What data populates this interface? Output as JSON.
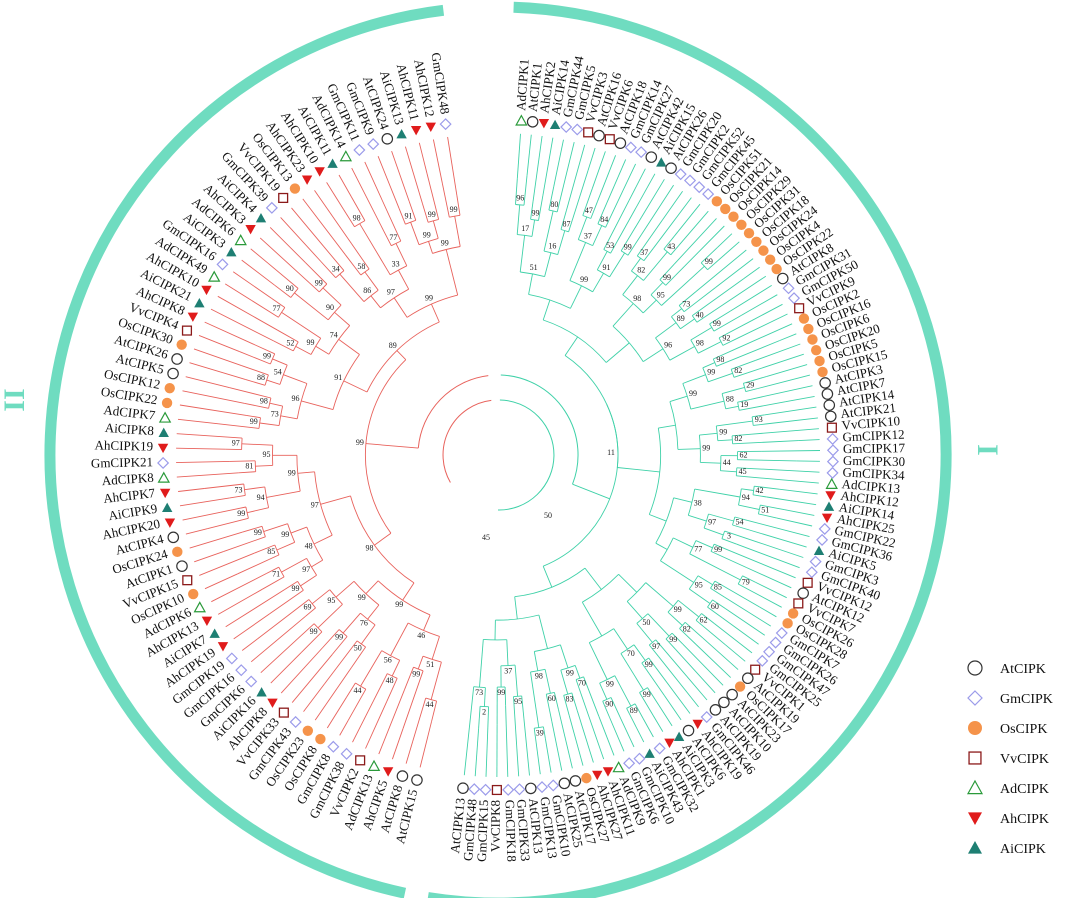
{
  "colors": {
    "ring": "#6fdcc0",
    "clade_I_branch": "#3fd1a8",
    "clade_II_branch": "#e8625c",
    "OsCIPK": "#f5934a",
    "GmCIPK": "#9b9bea",
    "VvCIPK": "#8b1a1a",
    "AdCIPK": "#2a9a3a",
    "AhCIPK": "#e01b1b",
    "AiCIPK": "#1e7f73",
    "AtCIPK": "#333333"
  },
  "clades": [
    {
      "label": "I"
    },
    {
      "label": "II"
    }
  ],
  "legend": [
    {
      "label": "AtCIPK",
      "icon": "open-circle-icon"
    },
    {
      "label": "GmCIPK",
      "icon": "open-diamond-icon"
    },
    {
      "label": "OsCIPK",
      "icon": "filled-circle-icon"
    },
    {
      "label": "VvCIPK",
      "icon": "open-square-icon"
    },
    {
      "label": "AdCIPK",
      "icon": "open-triangle-icon"
    },
    {
      "label": "AhCIPK",
      "icon": "down-triangle-icon"
    },
    {
      "label": "AiCIPK",
      "icon": "up-triangle-icon"
    }
  ],
  "root_bootstrap": [
    "45",
    "50",
    "11"
  ],
  "clade_I_leaves": [
    "AdCIPK1",
    "AtCIPK1",
    "AhCIPK2",
    "AiCIPK14",
    "GmCIPK44",
    "GmCIPK5",
    "VvCIPK3",
    "AtCIPK16",
    "VvCIPK6",
    "AtCIPK18",
    "GmCIPK14",
    "GmCIPK27",
    "AtCIPK42",
    "AiCIPK15",
    "AtCIPK26",
    "GmCIPK20",
    "GmCIPK2",
    "GmCIPK52",
    "GmCIPK45",
    "OsCIPK51",
    "OsCIPK21",
    "OsCIPK14",
    "OsCIPK29",
    "OsCIPK31",
    "OsCIPK18",
    "OsCIPK24",
    "OsCIPK4",
    "OsCIPK22",
    "AtCIPK8",
    "GmCIPK31",
    "GmCIPK50",
    "VvCIPK9",
    "OsCIPK2",
    "OsCIPK16",
    "OsCIPK6",
    "OsCIPK20",
    "OsCIPK5",
    "OsCIPK15",
    "AtCIPK3",
    "AtCIPK7",
    "AtCIPK14",
    "AtCIPK21",
    "VvCIPK10",
    "GmCIPK12",
    "GmCIPK17",
    "GmCIPK30",
    "GmCIPK34",
    "AdCIPK13",
    "AhCIPK12",
    "AiCIPK14",
    "AhCIPK25",
    "GmCIPK22",
    "GmCIPK36",
    "AiCIPK5",
    "GmCIPK3",
    "GmCIPK40",
    "VvCIPK12",
    "AtCIPK12",
    "VvCIPK7",
    "OsCIPK26",
    "OsCIPK28",
    "GmCIPK7",
    "GmCIPK26",
    "GmCIPK47",
    "GmCIPK25",
    "VvCIPK1",
    "AtCIPK19",
    "OsCIPK17",
    "AtCIPK23",
    "AtCIPK10",
    "AtCIPK19",
    "GmCIPK46",
    "AhCIPK19",
    "AtCIPK6",
    "AiCIPK3",
    "AhCIPK1",
    "GmCIPK32",
    "AiCIPK43",
    "GmCIPK10",
    "GmCIPK6",
    "AdCIPK9",
    "AhCIPK11",
    "AhCIPK27",
    "OsCIPK27",
    "AtCIPK17",
    "AtCIPK25",
    "GmCIPK10",
    "GmCIPK13",
    "AtCIPK13",
    "GmCIPK33",
    "GmCIPK18",
    "VvCIPK8",
    "GmCIPK15",
    "GmCIPK48",
    "AtCIPK13"
  ],
  "clade_II_leaves": [
    "AtCIPK15",
    "AtCIPK8",
    "AhCIPK5",
    "AdCIPK13",
    "VvCIPK2",
    "GmCIPK38",
    "GmCIPK8",
    "OsCIPK8",
    "OsCIPK23",
    "GmCIPK43",
    "VvCIPK33",
    "AhCIPK8",
    "AiCIPK16",
    "GmCIPK6",
    "GmCIPK16",
    "GmCIPK19",
    "AhCIPK19",
    "AiCIPK7",
    "AhCIPK13",
    "AdCIPK6",
    "OsCIPK10",
    "VvCIPK15",
    "AtCIPK1",
    "OsCIPK24",
    "AtCIPK4",
    "AhCIPK20",
    "AiCIPK9",
    "AhCIPK7",
    "AdCIPK8",
    "GmCIPK21",
    "AhCIPK19",
    "AiCIPK8",
    "AdCIPK7",
    "OsCIPK22",
    "OsCIPK12",
    "AtCIPK5",
    "AtCIPK26",
    "OsCIPK30",
    "VvCIPK4",
    "AhCIPK8",
    "AiCIPK21",
    "AhCIPK10",
    "AdCIPK49",
    "GmCIPK16",
    "AiCIPK3",
    "AdCIPK6",
    "AhCIPK3",
    "AiCIPK4",
    "GmCIPK39",
    "VvCIPK19",
    "OsCIPK13",
    "AhCIPK23",
    "AhCIPK10",
    "AiCIPK11",
    "AdCIPK14",
    "GmCIPK11",
    "GmCIPK9",
    "AtCIPK24",
    "AiCIPK13",
    "AhCIPK11",
    "AhCIPK12",
    "GmCIPK48"
  ],
  "clade_I_bootstrap": [
    "96",
    "99",
    "80",
    "87",
    "47",
    "84",
    "53",
    "99",
    "37",
    "43",
    "99",
    "99",
    "73",
    "40",
    "99",
    "92",
    "98",
    "82",
    "29",
    "19",
    "93",
    "82",
    "62",
    "45",
    "42",
    "51",
    "54",
    "3",
    "99",
    "79",
    "85",
    "60",
    "62",
    "82",
    "99",
    "97",
    "99",
    "99",
    "89",
    "90",
    "70",
    "83",
    "60",
    "39",
    "95",
    "99",
    "2",
    "17",
    "16",
    "37",
    "91",
    "82",
    "95",
    "89",
    "98",
    "99",
    "88",
    "99",
    "44",
    "94",
    "97",
    "77",
    "95",
    "99",
    "50",
    "70",
    "99",
    "99",
    "98",
    "37",
    "73",
    "51",
    "99",
    "98",
    "96",
    "99",
    "99",
    "38"
  ],
  "clade_II_bootstrap": [
    "44",
    "99",
    "48",
    "44",
    "50",
    "99",
    "99",
    "69",
    "99",
    "71",
    "85",
    "99",
    "99",
    "73",
    "81",
    "97",
    "99",
    "98",
    "88",
    "99",
    "52",
    "77",
    "90",
    "99",
    "34",
    "58",
    "98",
    "77",
    "91",
    "99",
    "99",
    "51",
    "56",
    "76",
    "95",
    "97",
    "99",
    "94",
    "95",
    "73",
    "54",
    "99",
    "90",
    "86",
    "33",
    "99",
    "46",
    "99",
    "48",
    "99",
    "96",
    "74",
    "97",
    "99",
    "99",
    "97",
    "91",
    "99",
    "98",
    "89",
    "99",
    "99",
    "71",
    "98"
  ]
}
